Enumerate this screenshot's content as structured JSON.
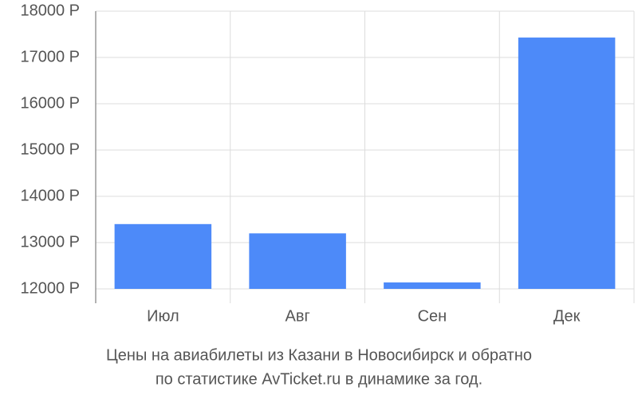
{
  "chart_data": {
    "type": "bar",
    "title_lines": [
      "Цены на авиабилеты из Казани в Новосибирск и обратно",
      "по статистике AvTicket.ru в динамике за год."
    ],
    "categories": [
      "Июл",
      "Авг",
      "Сен",
      "Дек"
    ],
    "values": [
      13400,
      13200,
      12140,
      17430
    ],
    "color": "#4d8af9",
    "ylim": [
      12000,
      18000
    ],
    "yticks": [
      {
        "value": 12000,
        "label": "12000 Р"
      },
      {
        "value": 13000,
        "label": "13000 Р"
      },
      {
        "value": 14000,
        "label": "14000 Р"
      },
      {
        "value": 15000,
        "label": "15000 Р"
      },
      {
        "value": 16000,
        "label": "16000 Р"
      },
      {
        "value": 17000,
        "label": "17000 Р"
      },
      {
        "value": 18000,
        "label": "18000 Р"
      }
    ],
    "grid": true
  }
}
